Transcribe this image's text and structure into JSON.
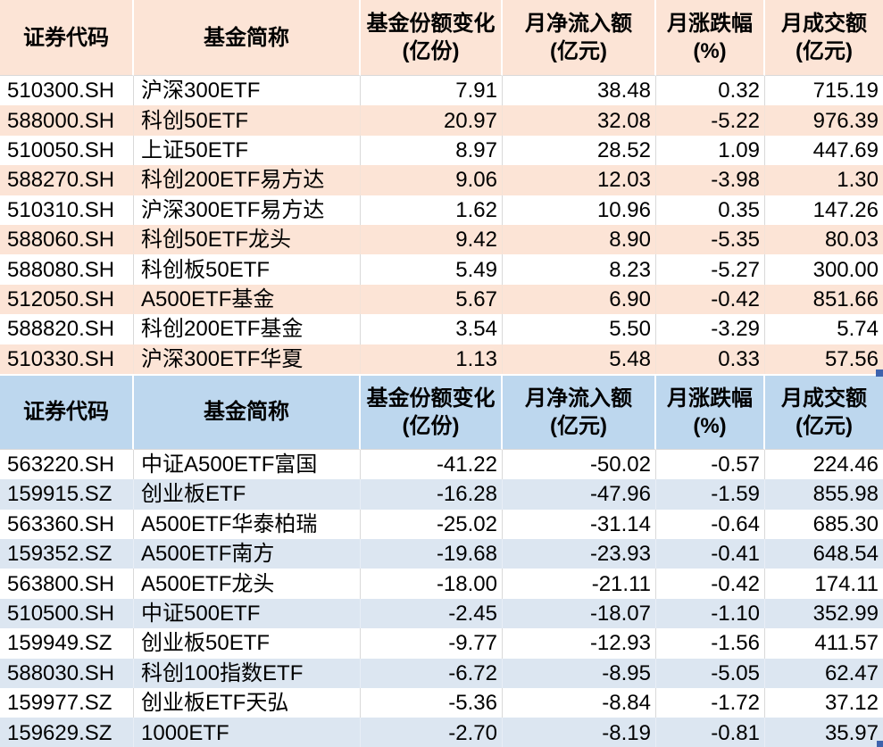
{
  "colors": {
    "orange_fill": "#FCE4D6",
    "blue_header_fill": "#BDD7EE",
    "blue_row_fill": "#DCE6F1",
    "gridline": "#D9D9D9",
    "fill_handle": "#3E63AD",
    "text": "#000000"
  },
  "tables": [
    {
      "name": "monthly-net-inflow-table",
      "columns": [
        {
          "line1": "证券代码",
          "line2": ""
        },
        {
          "line1": "基金简称",
          "line2": ""
        },
        {
          "line1": "基金份额变化",
          "line2": "(亿份)"
        },
        {
          "line1": "月净流入额",
          "line2": "(亿元)"
        },
        {
          "line1": "月涨跌幅",
          "line2": "(%)"
        },
        {
          "line1": "月成交额",
          "line2": "(亿元)"
        }
      ],
      "rows": [
        [
          "510300.SH",
          "沪深300ETF",
          "7.91",
          "38.48",
          "0.32",
          "715.19"
        ],
        [
          "588000.SH",
          "科创50ETF",
          "20.97",
          "32.08",
          "-5.22",
          "976.39"
        ],
        [
          "510050.SH",
          "上证50ETF",
          "8.97",
          "28.52",
          "1.09",
          "447.69"
        ],
        [
          "588270.SH",
          "科创200ETF易方达",
          "9.06",
          "12.03",
          "-3.98",
          "1.30"
        ],
        [
          "510310.SH",
          "沪深300ETF易方达",
          "1.62",
          "10.96",
          "0.35",
          "147.26"
        ],
        [
          "588060.SH",
          "科创50ETF龙头",
          "9.42",
          "8.90",
          "-5.35",
          "80.03"
        ],
        [
          "588080.SH",
          "科创板50ETF",
          "5.49",
          "8.23",
          "-5.27",
          "300.00"
        ],
        [
          "512050.SH",
          "A500ETF基金",
          "5.67",
          "6.90",
          "-0.42",
          "851.66"
        ],
        [
          "588820.SH",
          "科创200ETF基金",
          "3.54",
          "5.50",
          "-3.29",
          "5.74"
        ],
        [
          "510330.SH",
          "沪深300ETF华夏",
          "1.13",
          "5.48",
          "0.33",
          "57.56"
        ]
      ]
    },
    {
      "name": "monthly-net-outflow-table",
      "columns": [
        {
          "line1": "证券代码",
          "line2": ""
        },
        {
          "line1": "基金简称",
          "line2": ""
        },
        {
          "line1": "基金份额变化",
          "line2": "(亿份)"
        },
        {
          "line1": "月净流入额",
          "line2": "(亿元)"
        },
        {
          "line1": "月涨跌幅",
          "line2": "(%)"
        },
        {
          "line1": "月成交额",
          "line2": "(亿元)"
        }
      ],
      "rows": [
        [
          "563220.SH",
          "中证A500ETF富国",
          "-41.22",
          "-50.02",
          "-0.57",
          "224.46"
        ],
        [
          "159915.SZ",
          "创业板ETF",
          "-16.28",
          "-47.96",
          "-1.59",
          "855.98"
        ],
        [
          "563360.SH",
          "A500ETF华泰柏瑞",
          "-25.02",
          "-31.14",
          "-0.64",
          "685.30"
        ],
        [
          "159352.SZ",
          "A500ETF南方",
          "-19.68",
          "-23.93",
          "-0.41",
          "648.54"
        ],
        [
          "563800.SH",
          "A500ETF龙头",
          "-18.00",
          "-21.11",
          "-0.42",
          "174.11"
        ],
        [
          "510500.SH",
          "中证500ETF",
          "-2.45",
          "-18.07",
          "-1.10",
          "352.99"
        ],
        [
          "159949.SZ",
          "创业板50ETF",
          "-9.77",
          "-12.93",
          "-1.56",
          "411.57"
        ],
        [
          "588030.SH",
          "科创100指数ETF",
          "-6.72",
          "-8.95",
          "-5.05",
          "62.47"
        ],
        [
          "159977.SZ",
          "创业板ETF天弘",
          "-5.36",
          "-8.84",
          "-1.72",
          "37.12"
        ],
        [
          "159629.SZ",
          "1000ETF",
          "-2.70",
          "-8.19",
          "-0.81",
          "35.97"
        ]
      ]
    }
  ]
}
